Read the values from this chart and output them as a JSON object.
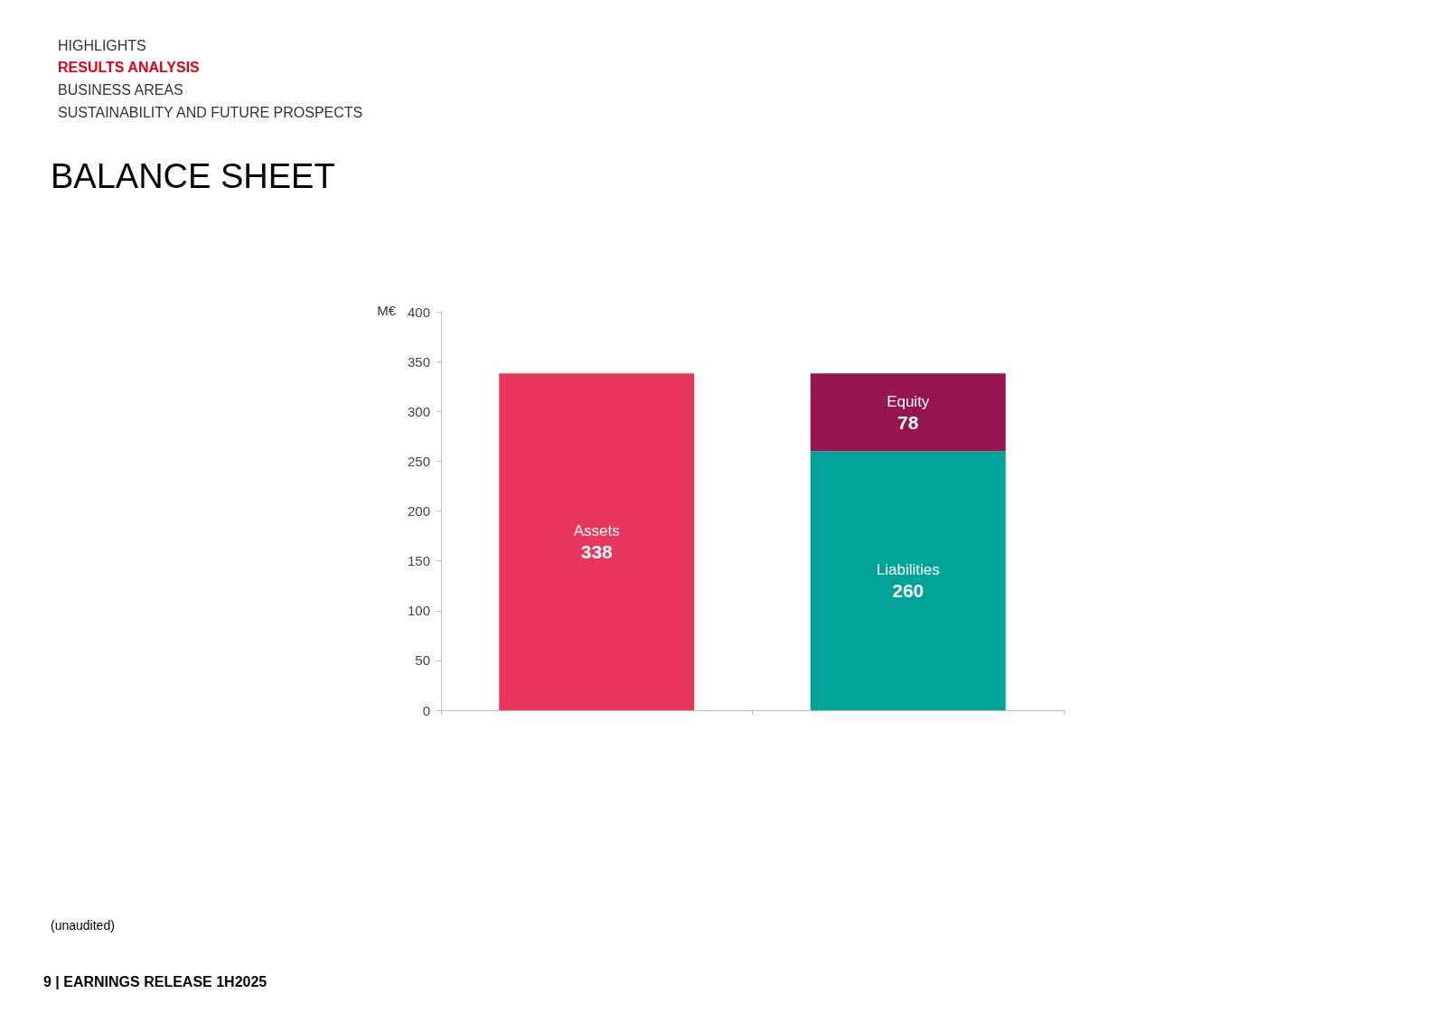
{
  "chart_data": {
    "type": "bar",
    "title": "BALANCE SHEET",
    "ylabel": "M€",
    "annotations": [
      "HIGHLIGHTS",
      "RESULTS ANALYSIS",
      "BUSINESS AREAS",
      "SUSTAINABILITY AND FUTURE PROSPECTS",
      "(unaudited)",
      "9 | EARNINGS RELEASE 1H2025"
    ],
    "categories": [
      null,
      null
    ],
    "stacked": true,
    "series": [
      {
        "name": "Assets",
        "color": "#e8365e",
        "values": [
          338,
          null
        ]
      },
      {
        "name": "Liabilities",
        "color": "#00a398",
        "values": [
          null,
          260
        ]
      },
      {
        "name": "Equity",
        "color": "#96154e",
        "values": [
          null,
          78
        ]
      }
    ],
    "ylim": [
      0,
      400
    ],
    "yticks": [
      0,
      50,
      100,
      150,
      200,
      250,
      300,
      350,
      400
    ],
    "data_labels": true
  }
}
